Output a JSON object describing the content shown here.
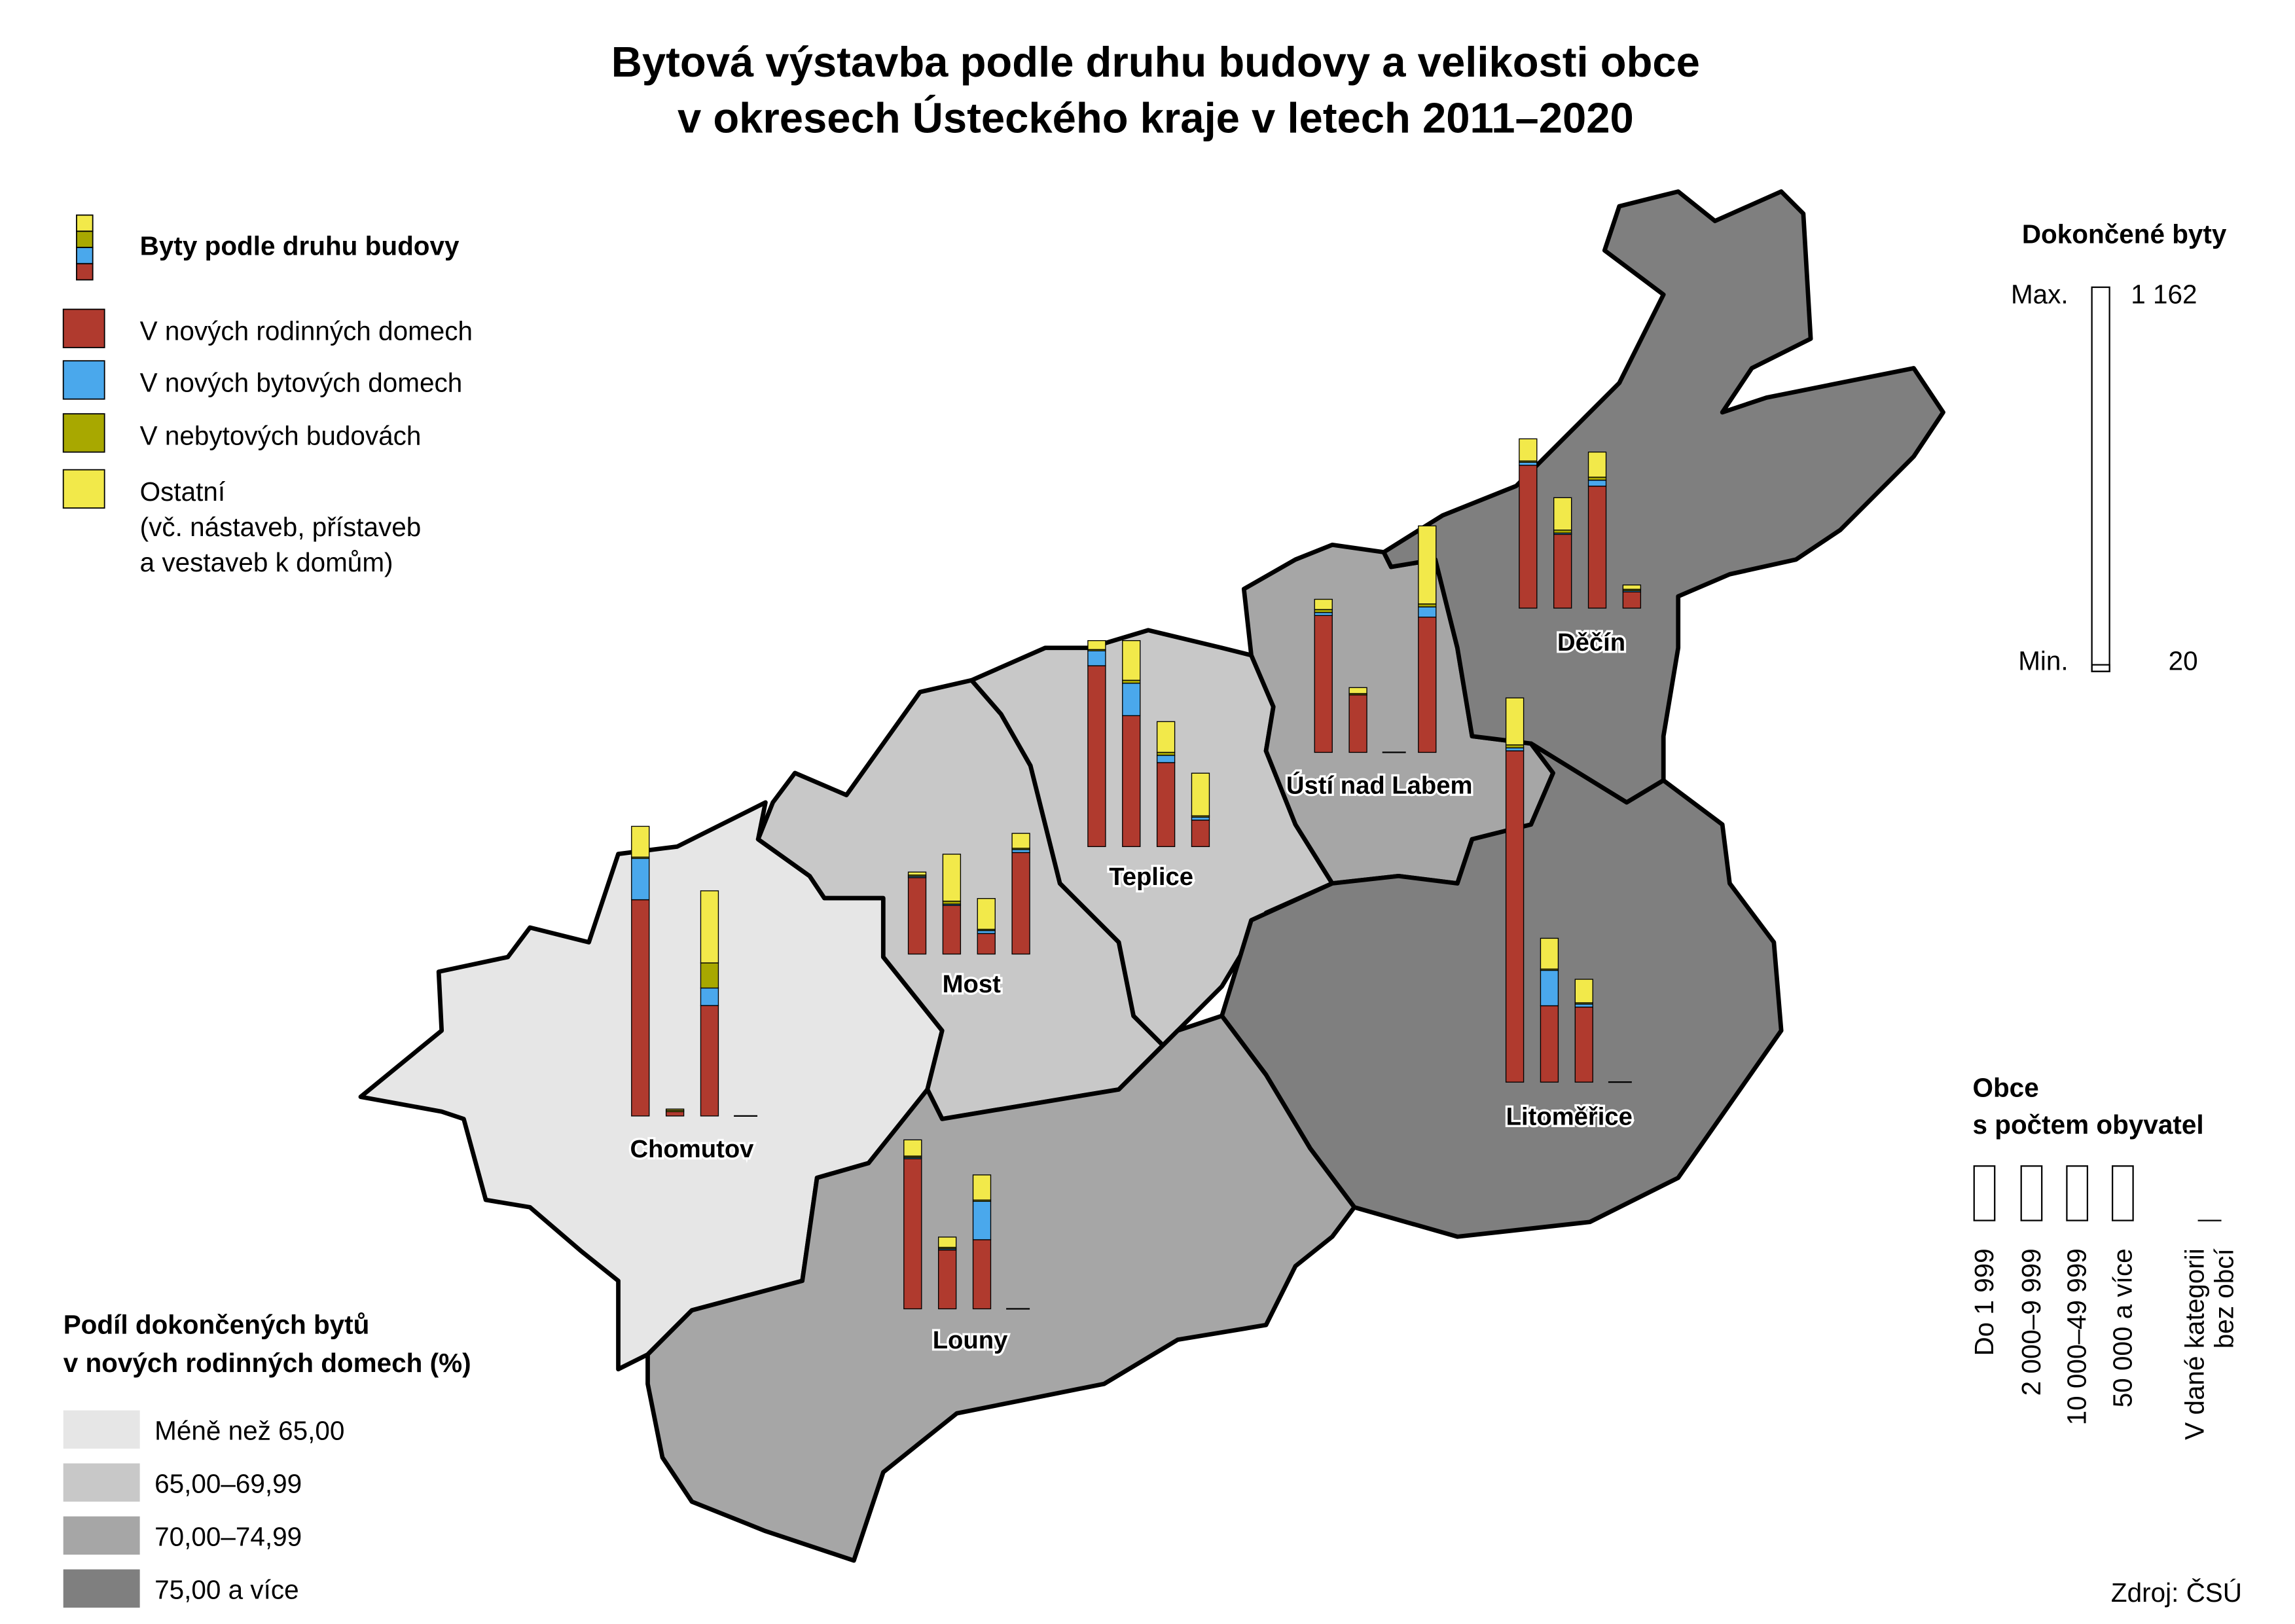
{
  "title": [
    "Bytová výstavba podle druhu budovy a velikosti obce",
    "v okresech Ústeckého kraje v letech 2011–2020"
  ],
  "type_legend": {
    "title": "Byty podle druhu budovy",
    "items": [
      {
        "label": [
          "V nových rodinných domech"
        ],
        "color": "#b03a2e"
      },
      {
        "label": [
          "V nových bytových domech"
        ],
        "color": "#4aa8ec"
      },
      {
        "label": [
          "V nebytových budovách"
        ],
        "color": "#a8a800"
      },
      {
        "label": [
          "Ostatní",
          "(vč. nástaveb, přístaveb",
          "a vestaveb k domům)"
        ],
        "color": "#f2e94a"
      }
    ]
  },
  "scale_legend": {
    "title": "Dokončené byty",
    "max_label": "Max.",
    "max": {
      "value": 1162,
      "label": "1 162"
    },
    "min_label": "Min.",
    "min": 20
  },
  "size_legend": {
    "title": [
      "Obce",
      "s počtem obyvatel"
    ],
    "items": [
      [
        "Do 1 999"
      ],
      [
        "2 000–9 999"
      ],
      [
        "10 000–49 999"
      ],
      [
        "50 000 a více"
      ],
      [
        "V dané kategorii",
        "bez obcí"
      ]
    ]
  },
  "share_legend": {
    "title": [
      "Podíl dokončených bytů",
      "v nových rodinných domech (%)"
    ],
    "items": [
      {
        "label": "Méně než 65,00",
        "color": "#e6e6e6"
      },
      {
        "label": "65,00–69,99",
        "color": "#c8c8c8"
      },
      {
        "label": "70,00–74,99",
        "color": "#a6a6a6"
      },
      {
        "label": "75,00 a více",
        "color": "#7f7f7f"
      }
    ]
  },
  "districts": [
    {
      "name": "Chomutov",
      "color": "#e6e6e6",
      "bars": [
        [
          654,
          125,
          4,
          93
        ],
        [
          13,
          0,
          4,
          4
        ],
        [
          334,
          53,
          76,
          218
        ],
        null
      ]
    },
    {
      "name": "Most",
      "color": "#c8c8c8",
      "bars": [
        [
          231,
          4,
          4,
          9
        ],
        [
          147,
          4,
          9,
          142
        ],
        [
          62,
          9,
          4,
          93
        ],
        [
          307,
          9,
          4,
          45
        ]
      ]
    },
    {
      "name": "Teplice",
      "color": "#c8c8c8",
      "bars": [
        [
          547,
          45,
          4,
          27
        ],
        [
          396,
          98,
          9,
          120
        ],
        [
          254,
          22,
          9,
          93
        ],
        [
          80,
          9,
          4,
          129
        ]
      ]
    },
    {
      "name": "Ústí nad Labem",
      "color": "#a6a6a6",
      "bars": [
        [
          414,
          9,
          9,
          31
        ],
        [
          174,
          0,
          4,
          18
        ],
        null,
        [
          409,
          31,
          9,
          236
        ]
      ]
    },
    {
      "name": "Děčín",
      "color": "#7f7f7f",
      "bars": [
        [
          432,
          9,
          4,
          67
        ],
        [
          223,
          4,
          9,
          98
        ],
        [
          369,
          18,
          9,
          76
        ],
        [
          49,
          4,
          4,
          13
        ]
      ]
    },
    {
      "name": "Litoměřice",
      "color": "#7f7f7f",
      "bars": [
        [
          1002,
          9,
          9,
          142
        ],
        [
          231,
          107,
          4,
          93
        ],
        [
          227,
          9,
          4,
          71
        ],
        null
      ]
    },
    {
      "name": "Louny",
      "color": "#a6a6a6",
      "bars": [
        [
          454,
          4,
          4,
          49
        ],
        [
          178,
          4,
          4,
          31
        ],
        [
          209,
          116,
          4,
          76
        ],
        null
      ]
    }
  ],
  "source": "Zdroj: ČSÚ"
}
